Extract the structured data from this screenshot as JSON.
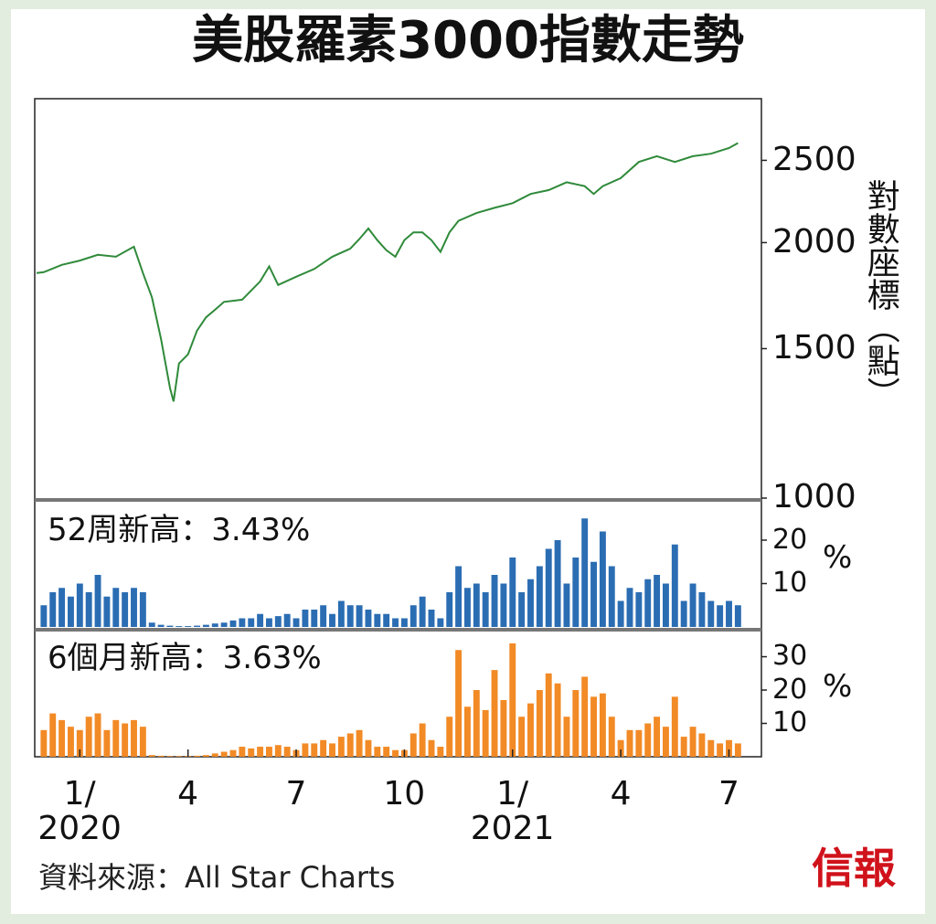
{
  "title": "美股羅素3000指數走勢",
  "source": "資料來源：All Star Charts",
  "logo": "信報",
  "chart_data": [
    {
      "type": "line",
      "y_label": "對數座標（點）",
      "log": true,
      "color": "#2f8a3a",
      "x": [
        -1.2,
        -1,
        -0.5,
        0,
        0.5,
        1,
        1.5,
        1.75,
        2,
        2.25,
        2.5,
        2.6,
        2.75,
        3,
        3.25,
        3.5,
        3.75,
        4,
        4.5,
        5,
        5.25,
        5.5,
        6,
        6.5,
        7,
        7.5,
        7.75,
        8,
        8.25,
        8.5,
        8.75,
        9,
        9.25,
        9.5,
        9.75,
        10,
        10.25,
        10.5,
        11,
        11.5,
        12,
        12.5,
        13,
        13.5,
        14,
        14.25,
        14.5,
        15,
        15.5,
        16,
        16.5,
        17,
        17.5,
        18,
        18.25
      ],
      "values": [
        1841,
        1846,
        1883,
        1905,
        1935,
        1925,
        1978,
        1841,
        1724,
        1541,
        1348,
        1300,
        1441,
        1477,
        1575,
        1633,
        1667,
        1703,
        1713,
        1800,
        1875,
        1783,
        1823,
        1862,
        1925,
        1967,
        2019,
        2078,
        2013,
        1959,
        1925,
        2013,
        2056,
        2056,
        2013,
        1950,
        2056,
        2122,
        2167,
        2198,
        2226,
        2282,
        2306,
        2356,
        2331,
        2282,
        2331,
        2382,
        2489,
        2528,
        2489,
        2528,
        2545,
        2585,
        2620
      ],
      "xlim": [
        -1.25,
        18.9
      ],
      "ylim": [
        1000,
        2955
      ],
      "yticks": [
        1000,
        1500,
        2000,
        2500
      ]
    },
    {
      "type": "bar",
      "annotation": "52周新高：3.43%",
      "unit": "%",
      "color": "#2b6db3",
      "x": [
        -1,
        -0.75,
        -0.5,
        -0.25,
        0,
        0.25,
        0.5,
        0.75,
        1,
        1.25,
        1.5,
        1.75,
        2,
        2.25,
        2.5,
        2.75,
        3,
        3.25,
        3.5,
        3.75,
        4,
        4.25,
        4.5,
        4.75,
        5,
        5.25,
        5.5,
        5.75,
        6,
        6.25,
        6.5,
        6.75,
        7,
        7.25,
        7.5,
        7.75,
        8,
        8.25,
        8.5,
        8.75,
        9,
        9.25,
        9.5,
        9.75,
        10,
        10.25,
        10.5,
        10.75,
        11,
        11.25,
        11.5,
        11.75,
        12,
        12.25,
        12.5,
        12.75,
        13,
        13.25,
        13.5,
        13.75,
        14,
        14.25,
        14.5,
        14.75,
        15,
        15.25,
        15.5,
        15.75,
        16,
        16.25,
        16.5,
        16.75,
        17,
        17.25,
        17.5,
        17.75,
        18,
        18.25
      ],
      "values": [
        5,
        8,
        9,
        7,
        10,
        8,
        12,
        7,
        9,
        8,
        9,
        8,
        1,
        0.5,
        0.3,
        0.2,
        0.2,
        0.3,
        0.5,
        0.8,
        1,
        1.5,
        2,
        2,
        3,
        2,
        2.5,
        3,
        2,
        4,
        4,
        5,
        3,
        6,
        5,
        5,
        4,
        3,
        3,
        2,
        2,
        5,
        7,
        4,
        2,
        8,
        14,
        9,
        10,
        8,
        12,
        10,
        16,
        8,
        11,
        14,
        18,
        20,
        10,
        16,
        25,
        15,
        22,
        14,
        6,
        9,
        8,
        11,
        12,
        10,
        19,
        6,
        10,
        8,
        6,
        5,
        6,
        5
      ],
      "xlim": [
        -1.25,
        18.9
      ],
      "ylim": [
        0,
        28
      ],
      "yticks": [
        10,
        20
      ]
    },
    {
      "type": "bar",
      "annotation": "6個月新高：3.63%",
      "unit": "%",
      "color": "#f28a26",
      "x": [
        -1,
        -0.75,
        -0.5,
        -0.25,
        0,
        0.25,
        0.5,
        0.75,
        1,
        1.25,
        1.5,
        1.75,
        2,
        2.25,
        2.5,
        2.75,
        3,
        3.25,
        3.5,
        3.75,
        4,
        4.25,
        4.5,
        4.75,
        5,
        5.25,
        5.5,
        5.75,
        6,
        6.25,
        6.5,
        6.75,
        7,
        7.25,
        7.5,
        7.75,
        8,
        8.25,
        8.5,
        8.75,
        9,
        9.25,
        9.5,
        9.75,
        10,
        10.25,
        10.5,
        10.75,
        11,
        11.25,
        11.5,
        11.75,
        12,
        12.25,
        12.5,
        12.75,
        13,
        13.25,
        13.5,
        13.75,
        14,
        14.25,
        14.5,
        14.75,
        15,
        15.25,
        15.5,
        15.75,
        16,
        16.25,
        16.5,
        16.75,
        17,
        17.25,
        17.5,
        17.75,
        18,
        18.25
      ],
      "values": [
        8,
        13,
        11,
        9,
        8,
        12,
        13,
        8,
        11,
        10,
        11,
        9,
        0.5,
        0.3,
        0.2,
        0.2,
        0.2,
        0.3,
        0.5,
        1,
        1.5,
        2,
        3,
        2.5,
        3,
        3,
        3.5,
        3,
        2,
        4,
        4,
        5,
        4,
        6,
        7,
        8,
        5,
        3,
        3,
        2,
        2,
        7,
        10,
        5,
        3,
        12,
        32,
        15,
        20,
        14,
        26,
        17,
        34,
        12,
        16,
        20,
        25,
        22,
        12,
        20,
        24,
        18,
        19,
        12,
        5,
        8,
        8,
        10,
        12,
        9,
        18,
        6,
        9,
        7,
        5,
        4,
        5,
        4
      ],
      "xlim": [
        -1.25,
        18.9
      ],
      "ylim": [
        0,
        37
      ],
      "yticks": [
        10,
        20,
        30
      ],
      "xticks": [
        {
          "value": 0,
          "label": "1/\n2020"
        },
        {
          "value": 3,
          "label": "4"
        },
        {
          "value": 6,
          "label": "7"
        },
        {
          "value": 9,
          "label": "10"
        },
        {
          "value": 12,
          "label": "1/\n2021"
        },
        {
          "value": 15,
          "label": "4"
        },
        {
          "value": 18,
          "label": "7"
        }
      ]
    }
  ]
}
